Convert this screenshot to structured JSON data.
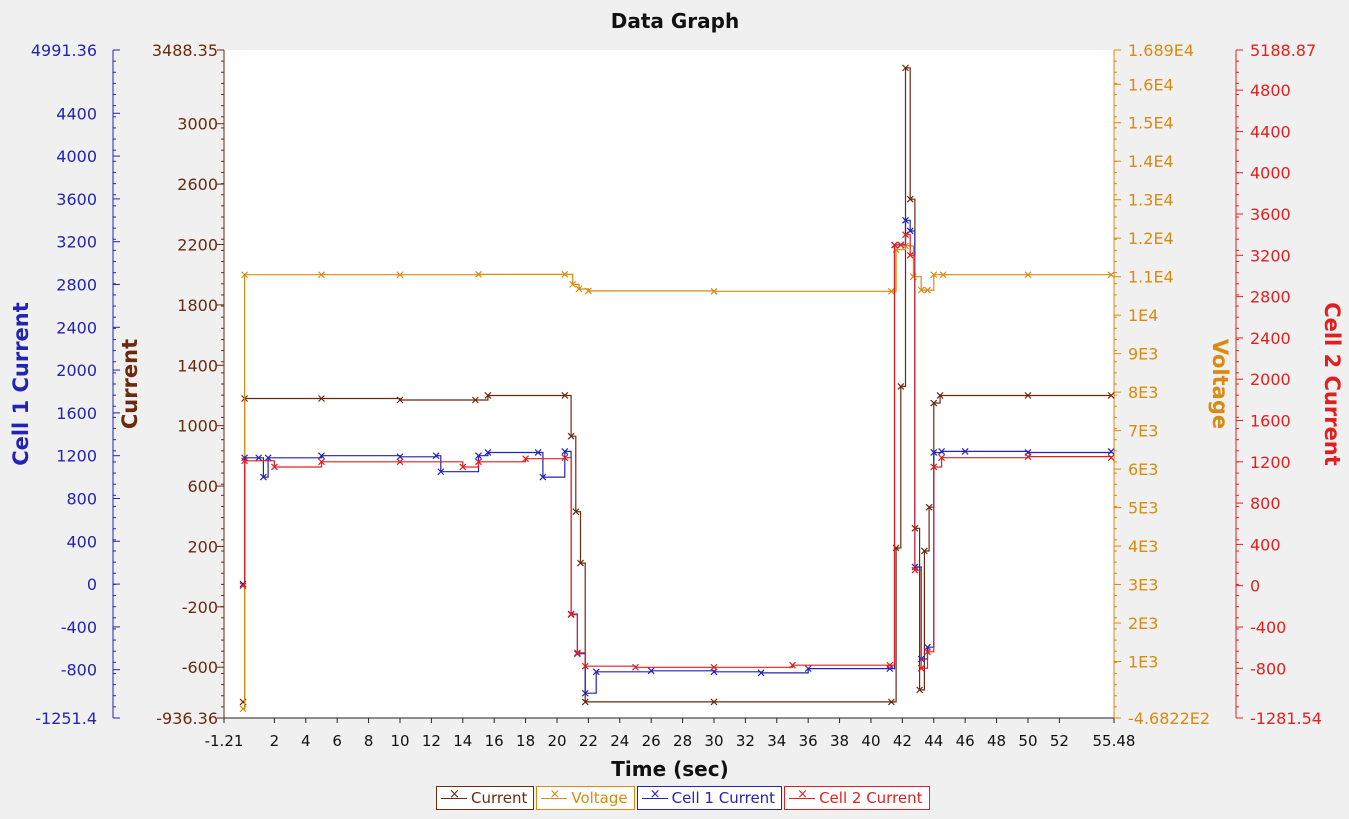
{
  "chart_data": {
    "type": "line",
    "title": "Data Graph",
    "xlabel": "Time (sec)",
    "xlim": [
      -1.21,
      55.48
    ],
    "x_ticks": [
      "-1.21",
      "2",
      "4",
      "6",
      "8",
      "10",
      "12",
      "14",
      "16",
      "18",
      "20",
      "22",
      "24",
      "26",
      "28",
      "30",
      "32",
      "34",
      "36",
      "38",
      "40",
      "42",
      "44",
      "46",
      "48",
      "50",
      "52",
      "55.48"
    ],
    "grid": false,
    "legend_position": "bottom",
    "axes": [
      {
        "id": "cell1",
        "label": "Cell 1 Current",
        "color": "#2323b4",
        "side": "left",
        "lim": [
          -1251.4,
          4991.36
        ],
        "ticks": [
          "4991.36",
          "4400",
          "4000",
          "3600",
          "3200",
          "2800",
          "2400",
          "2000",
          "1600",
          "1200",
          "800",
          "400",
          "0",
          "-400",
          "-800",
          "-1251.4"
        ]
      },
      {
        "id": "current",
        "label": "Current",
        "color": "#6b2a0f",
        "side": "left",
        "lim": [
          -936.36,
          3488.35
        ],
        "ticks": [
          "3488.35",
          "3000",
          "2600",
          "2200",
          "1800",
          "1400",
          "1000",
          "600",
          "200",
          "-200",
          "-600",
          "-936.36"
        ]
      },
      {
        "id": "voltage",
        "label": "Voltage",
        "color": "#d98a10",
        "side": "right",
        "lim": [
          -468.22,
          16890
        ],
        "ticks": [
          "1.689E4",
          "1.6E4",
          "1.5E4",
          "1.4E4",
          "1.3E4",
          "1.2E4",
          "1.1E4",
          "1E4",
          "9E3",
          "8E3",
          "7E3",
          "6E3",
          "5E3",
          "4E3",
          "3E3",
          "2E3",
          "1E3",
          "-4.6822E2"
        ]
      },
      {
        "id": "cell2",
        "label": "Cell 2 Current",
        "color": "#e02020",
        "side": "right",
        "lim": [
          -1281.54,
          5188.87
        ],
        "ticks": [
          "5188.87",
          "4800",
          "4400",
          "4000",
          "3600",
          "3200",
          "2800",
          "2400",
          "2000",
          "1600",
          "1200",
          "800",
          "400",
          "0",
          "-400",
          "-800",
          "-1281.54"
        ]
      }
    ],
    "series": [
      {
        "name": "Current",
        "axis": "current",
        "color": "#6b2a0f",
        "x": [
          0.0,
          0.1,
          5,
          10,
          14.8,
          15.6,
          20.5,
          20.9,
          21.2,
          21.5,
          21.8,
          30,
          41.3,
          41.6,
          41.9,
          42.2,
          42.5,
          42.8,
          43.1,
          43.4,
          43.7,
          44.0,
          44.4,
          50,
          55.3
        ],
        "y": [
          -830,
          1180,
          1180,
          1170,
          1170,
          1200,
          1200,
          930,
          430,
          90,
          -830,
          -830,
          -830,
          190,
          1260,
          3370,
          2500,
          320,
          -750,
          170,
          460,
          1150,
          1200,
          1200,
          1200
        ]
      },
      {
        "name": "Voltage",
        "axis": "voltage",
        "color": "#d98a10",
        "x": [
          0.0,
          0.1,
          5,
          10,
          15,
          20.5,
          21.0,
          21.4,
          22,
          30,
          41.3,
          41.6,
          42.2,
          42.7,
          43.2,
          43.6,
          44.0,
          44.6,
          50,
          55.3
        ],
        "y": [
          -230,
          11050,
          11050,
          11050,
          11060,
          11060,
          10800,
          10680,
          10630,
          10620,
          10620,
          11700,
          11800,
          11000,
          10650,
          10650,
          11050,
          11050,
          11050,
          11050
        ]
      },
      {
        "name": "Cell 1 Current",
        "axis": "cell1",
        "color": "#2323b4",
        "x": [
          0.0,
          0.1,
          1.0,
          1.3,
          1.6,
          5,
          10,
          12.3,
          12.6,
          15,
          15.6,
          18.8,
          19.1,
          20.5,
          20.9,
          21.3,
          21.8,
          22.5,
          26,
          30,
          33,
          36,
          41.2,
          41.5,
          41.9,
          42.2,
          42.5,
          42.8,
          43.2,
          43.6,
          44.0,
          44.5,
          46,
          50,
          55.3
        ],
        "y": [
          0,
          1180,
          1180,
          1000,
          1180,
          1200,
          1190,
          1200,
          1050,
          1200,
          1230,
          1230,
          1000,
          1240,
          -280,
          -650,
          -1020,
          -820,
          -810,
          -820,
          -830,
          -790,
          -790,
          3170,
          3170,
          3400,
          3300,
          160,
          -700,
          -590,
          1230,
          1240,
          1240,
          1230,
          1240
        ]
      },
      {
        "name": "Cell 2 Current",
        "axis": "cell2",
        "color": "#e02020",
        "x": [
          0.0,
          0.1,
          2,
          5,
          10,
          14,
          15,
          18,
          20.5,
          20.9,
          21.3,
          21.8,
          25,
          30,
          35,
          41.2,
          41.5,
          41.9,
          42.2,
          42.5,
          42.8,
          43.2,
          43.6,
          44.0,
          44.5,
          50,
          55.3
        ],
        "y": [
          0,
          1210,
          1150,
          1200,
          1200,
          1150,
          1200,
          1230,
          1240,
          -280,
          -650,
          -780,
          -790,
          -790,
          -770,
          -770,
          3300,
          3300,
          3400,
          3200,
          150,
          -800,
          -640,
          1150,
          1240,
          1250,
          1240
        ]
      }
    ]
  }
}
